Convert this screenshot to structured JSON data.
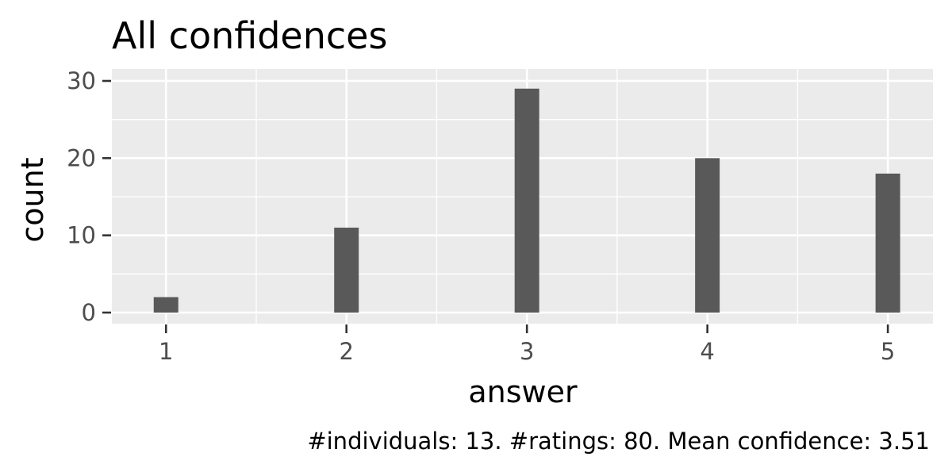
{
  "chart_data": {
    "type": "bar",
    "title": "All confidences",
    "xlabel": "answer",
    "ylabel": "count",
    "caption": "#individuals: 13. #ratings: 80. Mean confidence: 3.51",
    "categories": [
      "1",
      "2",
      "3",
      "4",
      "5"
    ],
    "x": [
      1,
      2,
      3,
      4,
      5
    ],
    "values": [
      2,
      11,
      29,
      20,
      18
    ],
    "xlim": [
      0.7,
      5.25
    ],
    "ylim": [
      0,
      30
    ],
    "yticks": [
      0,
      10,
      20,
      30
    ],
    "grid": true,
    "legend": "none",
    "colors": {
      "panel": "#ebebeb",
      "grid": "#ffffff",
      "bar": "#595959",
      "tick": "#333333",
      "tick_label": "#4d4d4d",
      "text": "#000000"
    }
  }
}
